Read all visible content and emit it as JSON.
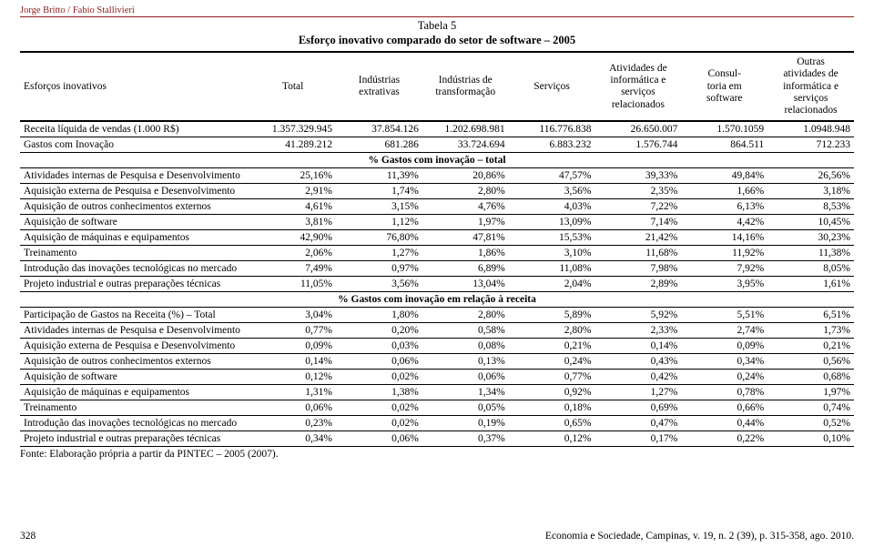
{
  "meta": {
    "authors": "Jorge Britto / Fabio Stallivieri",
    "table_no": "Tabela 5",
    "title": "Esforço inovativo comparado do setor de software – 2005",
    "source": "Fonte: Elaboração própria a partir da PINTEC – 2005 (2007).",
    "page_num": "328",
    "journal": "Economia e Sociedade, Campinas, v. 19, n. 2 (39), p. 315-358, ago. 2010."
  },
  "headers": [
    "Esforços inovativos",
    "Total",
    "Indústrias\nextrativas",
    "Indústrias de\ntransformação",
    "Serviços",
    "Atividades de\ninformática e\nserviços\nrelacionados",
    "Consul-\ntoria em\nsoftware",
    "Outras\natividades de\ninformática e\nserviços\nrelacionados"
  ],
  "rows_top": [
    {
      "label": "Receita líquida de vendas (1.000 R$)",
      "v": [
        "1.357.329.945",
        "37.854.126",
        "1.202.698.981",
        "116.776.838",
        "26.650.007",
        "1.570.1059",
        "1.0948.948"
      ]
    },
    {
      "label": "Gastos com Inovação",
      "v": [
        "41.289.212",
        "681.286",
        "33.724.694",
        "6.883.232",
        "1.576.744",
        "864.511",
        "712.233"
      ]
    }
  ],
  "section1": "% Gastos com inovação – total",
  "rows_s1": [
    {
      "label": "Atividades internas de Pesquisa e Desenvolvimento",
      "v": [
        "25,16%",
        "11,39%",
        "20,86%",
        "47,57%",
        "39,33%",
        "49,84%",
        "26,56%"
      ]
    },
    {
      "label": "Aquisição externa de Pesquisa e Desenvolvimento",
      "v": [
        "2,91%",
        "1,74%",
        "2,80%",
        "3,56%",
        "2,35%",
        "1,66%",
        "3,18%"
      ]
    },
    {
      "label": "Aquisição de outros conhecimentos externos",
      "v": [
        "4,61%",
        "3,15%",
        "4,76%",
        "4,03%",
        "7,22%",
        "6,13%",
        "8,53%"
      ]
    },
    {
      "label": "Aquisição de software",
      "v": [
        "3,81%",
        "1,12%",
        "1,97%",
        "13,09%",
        "7,14%",
        "4,42%",
        "10,45%"
      ]
    },
    {
      "label": "Aquisição de máquinas e equipamentos",
      "v": [
        "42,90%",
        "76,80%",
        "47,81%",
        "15,53%",
        "21,42%",
        "14,16%",
        "30,23%"
      ]
    },
    {
      "label": "Treinamento",
      "v": [
        "2,06%",
        "1,27%",
        "1,86%",
        "3,10%",
        "11,68%",
        "11,92%",
        "11,38%"
      ]
    },
    {
      "label": "Introdução das inovações tecnológicas no mercado",
      "v": [
        "7,49%",
        "0,97%",
        "6,89%",
        "11,08%",
        "7,98%",
        "7,92%",
        "8,05%"
      ]
    },
    {
      "label": "Projeto industrial e outras preparações técnicas",
      "v": [
        "11,05%",
        "3,56%",
        "13,04%",
        "2,04%",
        "2,89%",
        "3,95%",
        "1,61%"
      ]
    }
  ],
  "section2": "% Gastos com inovação em relação à receita",
  "rows_s2": [
    {
      "label": "Participação de Gastos na Receita (%) – Total",
      "v": [
        "3,04%",
        "1,80%",
        "2,80%",
        "5,89%",
        "5,92%",
        "5,51%",
        "6,51%"
      ]
    },
    {
      "label": "Atividades internas de Pesquisa e Desenvolvimento",
      "v": [
        "0,77%",
        "0,20%",
        "0,58%",
        "2,80%",
        "2,33%",
        "2,74%",
        "1,73%"
      ]
    },
    {
      "label": "Aquisição externa de Pesquisa e Desenvolvimento",
      "v": [
        "0,09%",
        "0,03%",
        "0,08%",
        "0,21%",
        "0,14%",
        "0,09%",
        "0,21%"
      ]
    },
    {
      "label": "Aquisição de outros conhecimentos externos",
      "v": [
        "0,14%",
        "0,06%",
        "0,13%",
        "0,24%",
        "0,43%",
        "0,34%",
        "0,56%"
      ]
    },
    {
      "label": "Aquisição de software",
      "v": [
        "0,12%",
        "0,02%",
        "0,06%",
        "0,77%",
        "0,42%",
        "0,24%",
        "0,68%"
      ]
    },
    {
      "label": "Aquisição de máquinas e equipamentos",
      "v": [
        "1,31%",
        "1,38%",
        "1,34%",
        "0,92%",
        "1,27%",
        "0,78%",
        "1,97%"
      ]
    },
    {
      "label": "Treinamento",
      "v": [
        "0,06%",
        "0,02%",
        "0,05%",
        "0,18%",
        "0,69%",
        "0,66%",
        "0,74%"
      ]
    },
    {
      "label": "Introdução das inovações tecnológicas no mercado",
      "v": [
        "0,23%",
        "0,02%",
        "0,19%",
        "0,65%",
        "0,47%",
        "0,44%",
        "0,52%"
      ]
    },
    {
      "label": "Projeto industrial e outras preparações técnicas",
      "v": [
        "0,34%",
        "0,06%",
        "0,37%",
        "0,12%",
        "0,17%",
        "0,22%",
        "0,10%"
      ]
    }
  ]
}
